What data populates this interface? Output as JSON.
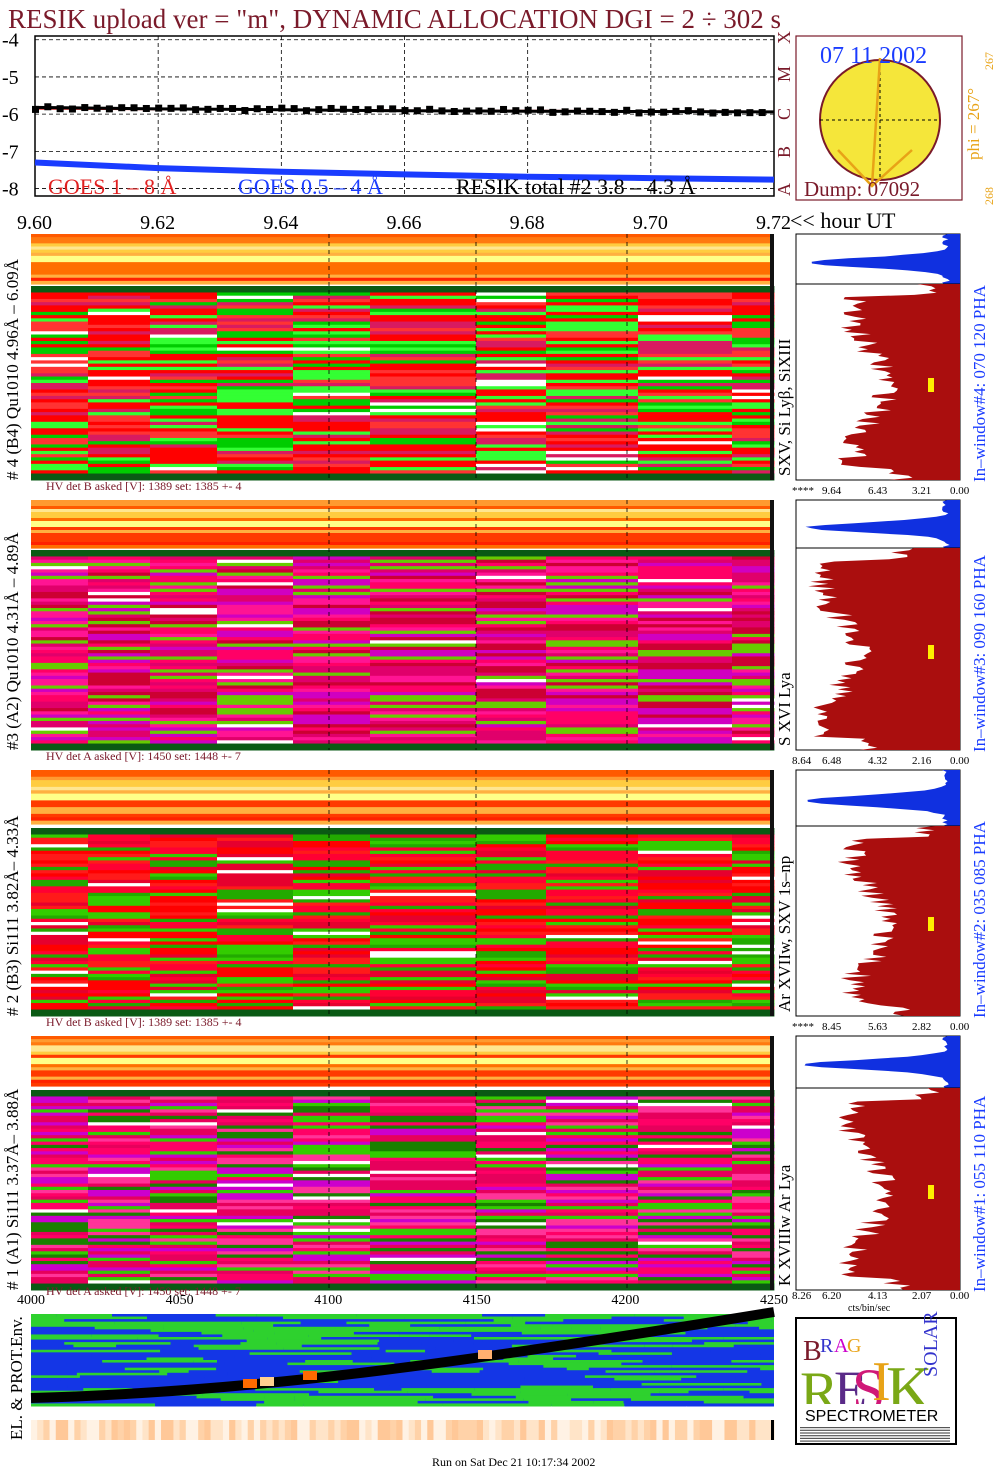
{
  "header": {
    "title": "RESIK upload ver = \"m\", DYNAMIC ALLOCATION  DGI =   2 ÷ 302 s",
    "date": "07 11 2002",
    "dump": "Dump: 07092",
    "phi_label": "phi = 267°",
    "phi_small_1": "267",
    "phi_small_2": "268",
    "class_letters": [
      "X",
      "M",
      "C",
      "B",
      "A"
    ],
    "footer": "Run on Sat Dec 21 10:17:34 2002"
  },
  "colors": {
    "title": "#7a1a2a",
    "goes_red": "#e02020",
    "goes_blue": "#1a3cff",
    "dark_red": "#aa0e0e",
    "blue_hist": "#1030e0",
    "orange": "#e8a317"
  },
  "chart_data": [
    {
      "type": "line",
      "name": "lightcurve",
      "yticks": [
        "-4",
        "-5",
        "-6",
        "-7",
        "-8"
      ],
      "ylim": [
        -8.2,
        -3.9
      ],
      "xticks": [
        "9.60",
        "9.62",
        "9.64",
        "9.66",
        "9.68",
        "9.70",
        "9.72"
      ],
      "xlim": [
        9.6,
        9.72
      ],
      "xlabel": "<< hour UT",
      "legend": [
        "GOES 1 – 8 Å",
        "GOES 0.5 – 4 Å",
        "RESIK total #2  3.8 – 4.3 Å"
      ],
      "series": [
        {
          "name": "GOES 1 – 8 Å",
          "x": [
            9.6,
            9.62,
            9.64,
            9.66,
            9.68,
            9.7,
            9.72
          ],
          "values": [
            -5.85,
            -5.87,
            -5.88,
            -5.9,
            -5.91,
            -5.92,
            -5.93
          ]
        },
        {
          "name": "GOES 0.5 – 4 Å",
          "x": [
            9.6,
            9.62,
            9.64,
            9.66,
            9.68,
            9.7,
            9.72
          ],
          "values": [
            -7.3,
            -7.45,
            -7.55,
            -7.62,
            -7.68,
            -7.72,
            -7.76
          ]
        },
        {
          "name": "RESIK total #2  3.8 – 4.3 Å",
          "x": [
            9.6,
            9.62,
            9.64,
            9.66,
            9.68,
            9.7,
            9.72
          ],
          "values": [
            -5.82,
            -5.86,
            -5.88,
            -5.91,
            -5.92,
            -5.93,
            -5.94
          ]
        }
      ]
    },
    {
      "type": "heatmap",
      "name": "detector-4",
      "ylabel": "# 4 (B4) Qu1010 4.96Å – 6.09Å",
      "lines": "SXV, Si Lyβ, SiXIII",
      "hv": "HV det B asked [V]:  1389 set:  1385 +-    4",
      "pha": "In–window#4:  070 120 PHA",
      "hist_ticks": [
        "****",
        "9.64",
        "6.43",
        "3.21",
        "0.00"
      ],
      "palette": [
        "#ff0000",
        "#00cc00",
        "#ff0000",
        "#33ff33",
        "#d81b60",
        "#ff3333"
      ]
    },
    {
      "type": "heatmap",
      "name": "detector-3",
      "ylabel": "#3 (A2) Qu1010  4.31Å – 4.89Å",
      "lines": "S XVI Lya",
      "hv": "HV det A asked [V]:  1450 set:  1448 +-     7",
      "pha": "In–window#3:  090 160 PHA",
      "hist_ticks": [
        "8.64",
        "6.48",
        "4.32",
        "2.16",
        "0.00"
      ],
      "palette": [
        "#e0006b",
        "#ff1493",
        "#d000c0",
        "#cc0033",
        "#66cc00",
        "#ff0066"
      ]
    },
    {
      "type": "heatmap",
      "name": "detector-2",
      "ylabel": "# 2 (B3) Si111  3.82Å– 4.33Å",
      "lines": "Ar XVIIw,  SXV 1s–np",
      "hv": "HV det B asked [V]:  1389 set:  1385 +-    4",
      "pha": "In–window#2:  035 085 PHA",
      "hist_ticks": [
        "****",
        "8.45",
        "5.63",
        "2.82",
        "0.00"
      ],
      "palette": [
        "#ff0000",
        "#ff1a1a",
        "#33cc00",
        "#e6002e",
        "#22aa00",
        "#ff0033"
      ]
    },
    {
      "type": "heatmap",
      "name": "detector-1",
      "ylabel": "# 1 (A1) Si111  3.37Å– 3.88Å",
      "lines": "K XVIIIw  Ar Lya",
      "hv": "HV det A asked [V]:  1450 set:  1448 +-     7",
      "pha": "In–window#1:  055 110 PHA",
      "hist_ticks": [
        "8.26",
        "6.20",
        "4.13",
        "2.07",
        "0.00"
      ],
      "hist_xlabel": "cts/bin/sec",
      "palette": [
        "#cc00cc",
        "#ff0066",
        "#33cc00",
        "#e6005c",
        "#1a8000",
        "#ff3399"
      ]
    },
    {
      "type": "heatmap",
      "name": "environment",
      "ylabel": "EL. & PROT.Env.",
      "xticks": [
        "4000",
        "4050",
        "4100",
        "4150",
        "4200",
        "4250"
      ],
      "xlim": [
        4000,
        4250
      ]
    }
  ],
  "logo": {
    "letters": [
      "B",
      "R",
      "A",
      "G",
      "R",
      "E",
      "S",
      "I",
      "K",
      "S",
      "O",
      "L",
      "A",
      "R"
    ],
    "banner": "SPECTROMETER"
  }
}
